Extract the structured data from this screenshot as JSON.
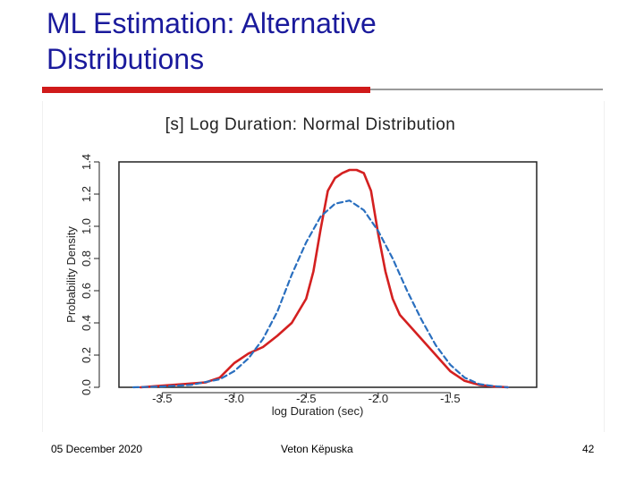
{
  "slide": {
    "title_line1": "ML Estimation: Alternative",
    "title_line2": "Distributions",
    "footer_date": "05 December 2020",
    "footer_author": "Veton Këpuska",
    "footer_page": "42"
  },
  "colors": {
    "title": "#1a1a9c",
    "accent_bar": "#d01a1a",
    "empirical": "#d42020",
    "fitted": "#2a6fbf"
  },
  "chart_data": {
    "type": "line",
    "title": "[s] Log Duration: Normal Distribution",
    "xlabel": "log Duration (sec)",
    "ylabel": "Probability Density",
    "xlim": [
      -3.8,
      -0.9
    ],
    "ylim": [
      0.0,
      1.4
    ],
    "xticks": [
      -3.5,
      -3.0,
      -2.5,
      -2.0,
      -1.5
    ],
    "xtick_labels": [
      "-3.5",
      "-3.0",
      "-2.5",
      "-2.0",
      "-1.5"
    ],
    "yticks": [
      0.0,
      0.2,
      0.4,
      0.6,
      0.8,
      1.0,
      1.2,
      1.4
    ],
    "ytick_labels": [
      "0.0",
      "0.2",
      "0.4",
      "0.6",
      "0.8",
      "1.0",
      "1.2",
      "1.4"
    ],
    "grid": false,
    "series": [
      {
        "style": "solid",
        "color": "#d42020",
        "x": [
          -3.65,
          -3.5,
          -3.35,
          -3.2,
          -3.1,
          -3.0,
          -2.9,
          -2.8,
          -2.7,
          -2.6,
          -2.5,
          -2.45,
          -2.4,
          -2.35,
          -2.3,
          -2.25,
          -2.2,
          -2.15,
          -2.1,
          -2.05,
          -2.0,
          -1.95,
          -1.9,
          -1.85,
          -1.8,
          -1.7,
          -1.6,
          -1.5,
          -1.4,
          -1.3,
          -1.2,
          -1.1
        ],
        "y": [
          0.0,
          0.01,
          0.02,
          0.03,
          0.06,
          0.15,
          0.21,
          0.25,
          0.32,
          0.4,
          0.55,
          0.72,
          0.98,
          1.22,
          1.3,
          1.33,
          1.35,
          1.35,
          1.33,
          1.22,
          0.95,
          0.72,
          0.55,
          0.45,
          0.4,
          0.3,
          0.2,
          0.1,
          0.04,
          0.015,
          0.005,
          0.0
        ]
      },
      {
        "style": "dashed",
        "color": "#2a6fbf",
        "x": [
          -3.7,
          -3.5,
          -3.3,
          -3.1,
          -3.0,
          -2.9,
          -2.8,
          -2.7,
          -2.6,
          -2.5,
          -2.4,
          -2.3,
          -2.2,
          -2.1,
          -2.0,
          -1.9,
          -1.8,
          -1.7,
          -1.6,
          -1.5,
          -1.4,
          -1.3,
          -1.2,
          -1.1
        ],
        "y": [
          0.0,
          0.005,
          0.015,
          0.05,
          0.1,
          0.18,
          0.3,
          0.47,
          0.7,
          0.9,
          1.06,
          1.14,
          1.16,
          1.1,
          0.97,
          0.8,
          0.6,
          0.42,
          0.26,
          0.14,
          0.06,
          0.02,
          0.007,
          0.0
        ]
      }
    ]
  }
}
